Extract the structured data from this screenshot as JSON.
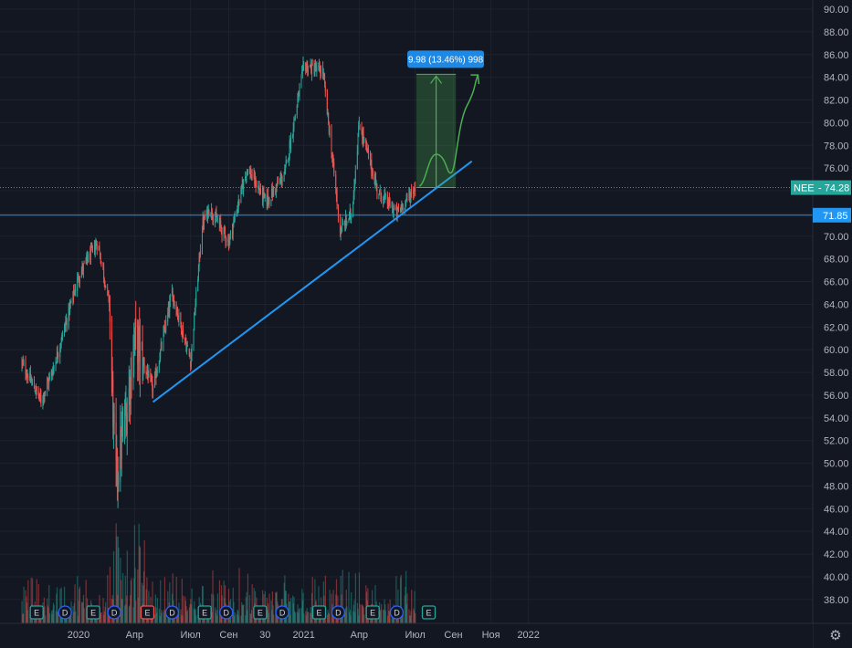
{
  "chart_data": {
    "type": "candlestick",
    "symbol": "NEE",
    "last_price": "74.28",
    "horizontal_line_label": "71.85",
    "horizontal_line_value": 71.85,
    "measure_label": "9.98 (13.46%) 998",
    "measure_from": 74.28,
    "measure_to": 84.26,
    "ylim": [
      36.5,
      90.5
    ],
    "y_ticks": [
      "90.00",
      "88.00",
      "86.00",
      "84.00",
      "82.00",
      "80.00",
      "78.00",
      "76.00",
      "74.00",
      "72.00",
      "70.00",
      "68.00",
      "66.00",
      "64.00",
      "62.00",
      "60.00",
      "58.00",
      "56.00",
      "54.00",
      "52.00",
      "50.00",
      "48.00",
      "46.00",
      "44.00",
      "42.00",
      "40.00",
      "38.00"
    ],
    "x_ticks": [
      "2020",
      "Апр",
      "Июл",
      "Сен",
      "30",
      "2021",
      "Апр",
      "Июл",
      "Сен",
      "Ноя",
      "2022"
    ],
    "trendline": [
      {
        "date": "2020-05",
        "value": 55.4
      },
      {
        "date": "2021-10",
        "value": 76.6
      }
    ],
    "price_path": [
      {
        "date": "2019-10",
        "close": 58.8
      },
      {
        "date": "2019-11",
        "close": 55.5
      },
      {
        "date": "2019-11-20",
        "close": 58.2
      },
      {
        "date": "2019-12",
        "close": 60.3
      },
      {
        "date": "2020-01",
        "close": 66.5
      },
      {
        "date": "2020-02",
        "close": 69.5
      },
      {
        "date": "2020-02-20",
        "close": 64.0
      },
      {
        "date": "2020-03",
        "close": 48.5
      },
      {
        "date": "2020-03-20",
        "close": 55.0
      },
      {
        "date": "2020-04",
        "close": 61.0
      },
      {
        "date": "2020-05",
        "close": 56.5
      },
      {
        "date": "2020-06",
        "close": 65.0
      },
      {
        "date": "2020-07",
        "close": 59.0
      },
      {
        "date": "2020-07-20",
        "close": 71.0
      },
      {
        "date": "2020-08",
        "close": 72.5
      },
      {
        "date": "2020-09",
        "close": 69.5
      },
      {
        "date": "2020-10",
        "close": 76.0
      },
      {
        "date": "2020-11",
        "close": 73.0
      },
      {
        "date": "2020-12",
        "close": 75.5
      },
      {
        "date": "2021-01",
        "close": 85.0
      },
      {
        "date": "2021-02",
        "close": 84.5
      },
      {
        "date": "2021-03",
        "close": 70.5
      },
      {
        "date": "2021-03-20",
        "close": 72.0
      },
      {
        "date": "2021-04",
        "close": 80.0
      },
      {
        "date": "2021-05",
        "close": 74.0
      },
      {
        "date": "2021-06",
        "close": 72.0
      },
      {
        "date": "2021-07",
        "close": 74.28
      }
    ],
    "event_markers": [
      "E",
      "D",
      "E",
      "D",
      "E",
      "D",
      "E",
      "D",
      "E",
      "D",
      "E",
      "D",
      "E",
      "D",
      "E",
      "D",
      "E",
      "D",
      "E",
      "D"
    ],
    "colors": {
      "up": "#26a69a",
      "down": "#ef5350",
      "line": "#2962ff",
      "accent": "#2196f3",
      "measure": "#4caf50"
    }
  },
  "icons": {
    "settings": "gear-icon"
  }
}
